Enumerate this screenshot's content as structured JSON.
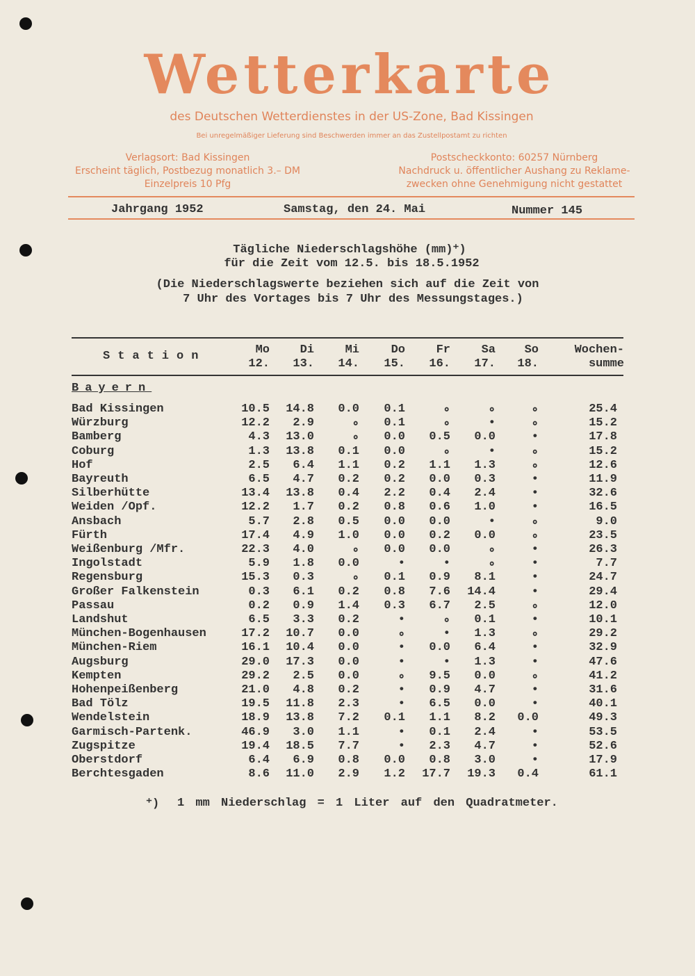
{
  "masthead": {
    "title": "Wetterkarte",
    "subtitle": "des Deutschen Wetterdienstes in der US-Zone, Bad Kissingen",
    "notice": "Bei unregelmäßiger Lieferung sind Beschwerden immer an das Zustellpostamt zu richten",
    "left": [
      "Verlagsort: Bad Kissingen",
      "Erscheint täglich, Postbezug monatlich 3.– DM",
      "Einzelpreis 10 Pfg"
    ],
    "right": [
      "Postscheckkonto: 60257 Nürnberg",
      "Nachdruck u. öffentlicher Aushang zu Reklame-",
      "zwecken ohne Genehmigung nicht gestattet"
    ]
  },
  "issue": {
    "year": "Jahrgang 1952",
    "date": "Samstag, den 24. Mai",
    "number": "Nummer 145"
  },
  "heading": {
    "line1": "Tägliche Niederschlagshöhe (mm)⁺)",
    "line2": "für die Zeit vom 12.5. bis 18.5.1952",
    "note1": "(Die Niederschlagswerte beziehen sich auf die Zeit von",
    "note2": "7 Uhr des Vortages bis 7 Uhr des Messungstages.)"
  },
  "table": {
    "station_header": "Station",
    "columns": [
      [
        "Mo",
        "12."
      ],
      [
        "Di",
        "13."
      ],
      [
        "Mi",
        "14."
      ],
      [
        "Do",
        "15."
      ],
      [
        "Fr",
        "16."
      ],
      [
        "Sa",
        "17."
      ],
      [
        "So",
        "18."
      ],
      [
        "Wochen-",
        "summe"
      ]
    ],
    "section": "Bayern",
    "rows": [
      [
        "Bad Kissingen",
        "10.5",
        "14.8",
        "0.0",
        "0.1",
        "∘",
        "∘",
        "∘",
        "25.4"
      ],
      [
        "Würzburg",
        "12.2",
        "2.9",
        "∘",
        "0.1",
        "∘",
        "•",
        "∘",
        "15.2"
      ],
      [
        "Bamberg",
        "4.3",
        "13.0",
        "∘",
        "0.0",
        "0.5",
        "0.0",
        "•",
        "17.8"
      ],
      [
        "Coburg",
        "1.3",
        "13.8",
        "0.1",
        "0.0",
        "∘",
        "•",
        "∘",
        "15.2"
      ],
      [
        "Hof",
        "2.5",
        "6.4",
        "1.1",
        "0.2",
        "1.1",
        "1.3",
        "∘",
        "12.6"
      ],
      [
        "Bayreuth",
        "6.5",
        "4.7",
        "0.2",
        "0.2",
        "0.0",
        "0.3",
        "•",
        "11.9"
      ],
      [
        "Silberhütte",
        "13.4",
        "13.8",
        "0.4",
        "2.2",
        "0.4",
        "2.4",
        "•",
        "32.6"
      ],
      [
        "Weiden /Opf.",
        "12.2",
        "1.7",
        "0.2",
        "0.8",
        "0.6",
        "1.0",
        "•",
        "16.5"
      ],
      [
        "Ansbach",
        "5.7",
        "2.8",
        "0.5",
        "0.0",
        "0.0",
        "•",
        "∘",
        "9.0"
      ],
      [
        "Fürth",
        "17.4",
        "4.9",
        "1.0",
        "0.0",
        "0.2",
        "0.0",
        "∘",
        "23.5"
      ],
      [
        "Weißenburg /Mfr.",
        "22.3",
        "4.0",
        "∘",
        "0.0",
        "0.0",
        "∘",
        "•",
        "26.3"
      ],
      [
        "Ingolstadt",
        "5.9",
        "1.8",
        "0.0",
        "•",
        "•",
        "∘",
        "•",
        "7.7"
      ],
      [
        "Regensburg",
        "15.3",
        "0.3",
        "∘",
        "0.1",
        "0.9",
        "8.1",
        "•",
        "24.7"
      ],
      [
        "Großer Falkenstein",
        "0.3",
        "6.1",
        "0.2",
        "0.8",
        "7.6",
        "14.4",
        "•",
        "29.4"
      ],
      [
        "Passau",
        "0.2",
        "0.9",
        "1.4",
        "0.3",
        "6.7",
        "2.5",
        "∘",
        "12.0"
      ],
      [
        "Landshut",
        "6.5",
        "3.3",
        "0.2",
        "•",
        "∘",
        "0.1",
        "•",
        "10.1"
      ],
      [
        "München-Bogenhausen",
        "17.2",
        "10.7",
        "0.0",
        "∘",
        "•",
        "1.3",
        "∘",
        "29.2"
      ],
      [
        "München-Riem",
        "16.1",
        "10.4",
        "0.0",
        "•",
        "0.0",
        "6.4",
        "•",
        "32.9"
      ],
      [
        "Augsburg",
        "29.0",
        "17.3",
        "0.0",
        "•",
        "•",
        "1.3",
        "•",
        "47.6"
      ],
      [
        "Kempten",
        "29.2",
        "2.5",
        "0.0",
        "∘",
        "9.5",
        "0.0",
        "∘",
        "41.2"
      ],
      [
        "Hohenpeißenberg",
        "21.0",
        "4.8",
        "0.2",
        "•",
        "0.9",
        "4.7",
        "•",
        "31.6"
      ],
      [
        "Bad Tölz",
        "19.5",
        "11.8",
        "2.3",
        "•",
        "6.5",
        "0.0",
        "•",
        "40.1"
      ],
      [
        "Wendelstein",
        "18.9",
        "13.8",
        "7.2",
        "0.1",
        "1.1",
        "8.2",
        "0.0",
        "49.3"
      ],
      [
        "Garmisch-Partenk.",
        "46.9",
        "3.0",
        "1.1",
        "•",
        "0.1",
        "2.4",
        "•",
        "53.5"
      ],
      [
        "Zugspitze",
        "19.4",
        "18.5",
        "7.7",
        "•",
        "2.3",
        "4.7",
        "•",
        "52.6"
      ],
      [
        "Oberstdorf",
        "6.4",
        "6.9",
        "0.8",
        "0.0",
        "0.8",
        "3.0",
        "•",
        "17.9"
      ],
      [
        "Berchtesgaden",
        "8.6",
        "11.0",
        "2.9",
        "1.2",
        "17.7",
        "19.3",
        "0.4",
        "61.1"
      ]
    ]
  },
  "footnote": {
    "mark": "⁺)",
    "text": "1 mm Niederschlag = 1 Liter auf den Quadratmeter."
  }
}
